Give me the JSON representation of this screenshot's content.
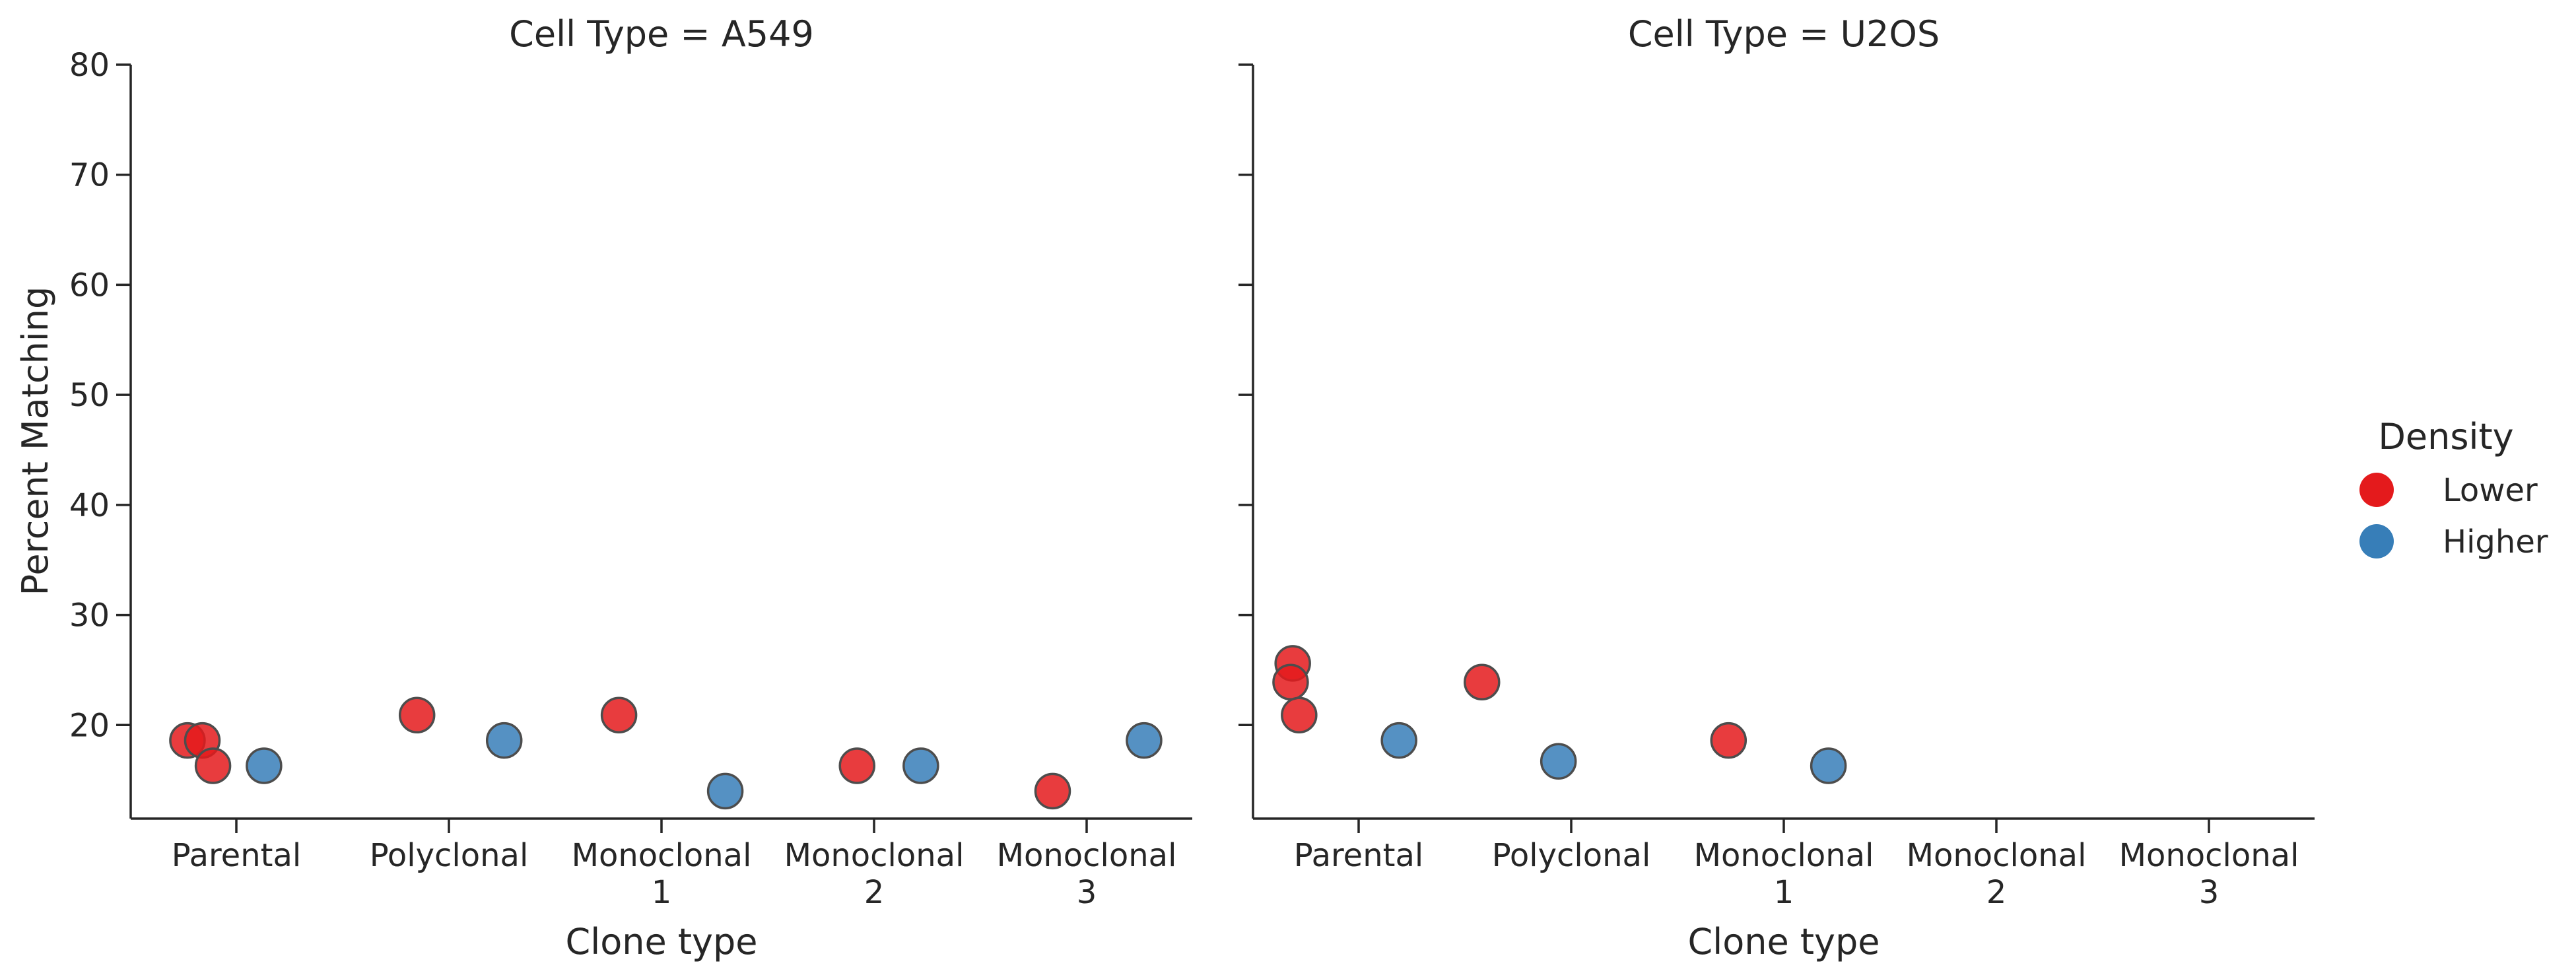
{
  "chart_data": {
    "type": "scatter",
    "xlabel": "Clone type",
    "ylabel": "Percent Matching",
    "categories": [
      [
        "Parental"
      ],
      [
        "Polyclonal"
      ],
      [
        "Monoclonal",
        "1"
      ],
      [
        "Monoclonal",
        "2"
      ],
      [
        "Monoclonal",
        "3"
      ]
    ],
    "ylim": [
      11.5,
      80
    ],
    "yticks": [
      "20",
      "30",
      "40",
      "50",
      "60",
      "70",
      "80"
    ],
    "legend": {
      "title": "Density",
      "placement": "right",
      "entries": [
        {
          "name": "Lower",
          "color": "#e41a1c"
        },
        {
          "name": "Higher",
          "color": "#377eb8"
        }
      ]
    },
    "panels": [
      {
        "title": "Cell Type = A549",
        "points": [
          {
            "category": 0,
            "density": "Lower",
            "y": 18.6,
            "jitter": -0.23
          },
          {
            "category": 0,
            "density": "Lower",
            "y": 18.6,
            "jitter": -0.16
          },
          {
            "category": 0,
            "density": "Lower",
            "y": 16.3,
            "jitter": -0.11
          },
          {
            "category": 0,
            "density": "Higher",
            "y": 16.3,
            "jitter": 0.13
          },
          {
            "category": 1,
            "density": "Lower",
            "y": 20.9,
            "jitter": -0.15
          },
          {
            "category": 1,
            "density": "Higher",
            "y": 18.6,
            "jitter": 0.26
          },
          {
            "category": 2,
            "density": "Lower",
            "y": 20.9,
            "jitter": -0.2
          },
          {
            "category": 2,
            "density": "Higher",
            "y": 14.0,
            "jitter": 0.3
          },
          {
            "category": 3,
            "density": "Lower",
            "y": 16.3,
            "jitter": -0.08
          },
          {
            "category": 3,
            "density": "Higher",
            "y": 16.3,
            "jitter": 0.22
          },
          {
            "category": 4,
            "density": "Lower",
            "y": 14.0,
            "jitter": -0.16
          },
          {
            "category": 4,
            "density": "Higher",
            "y": 18.6,
            "jitter": 0.27
          }
        ]
      },
      {
        "title": "Cell Type = U2OS",
        "points": [
          {
            "category": 0,
            "density": "Lower",
            "y": 25.6,
            "jitter": -0.31
          },
          {
            "category": 0,
            "density": "Lower",
            "y": 23.9,
            "jitter": -0.32
          },
          {
            "category": 0,
            "density": "Lower",
            "y": 20.9,
            "jitter": -0.28
          },
          {
            "category": 0,
            "density": "Higher",
            "y": 18.6,
            "jitter": 0.19
          },
          {
            "category": 1,
            "density": "Lower",
            "y": 23.9,
            "jitter": -0.42
          },
          {
            "category": 1,
            "density": "Higher",
            "y": 16.7,
            "jitter": -0.06
          },
          {
            "category": 2,
            "density": "Lower",
            "y": 18.6,
            "jitter": -0.26
          },
          {
            "category": 2,
            "density": "Higher",
            "y": 16.3,
            "jitter": 0.21
          }
        ]
      }
    ]
  }
}
